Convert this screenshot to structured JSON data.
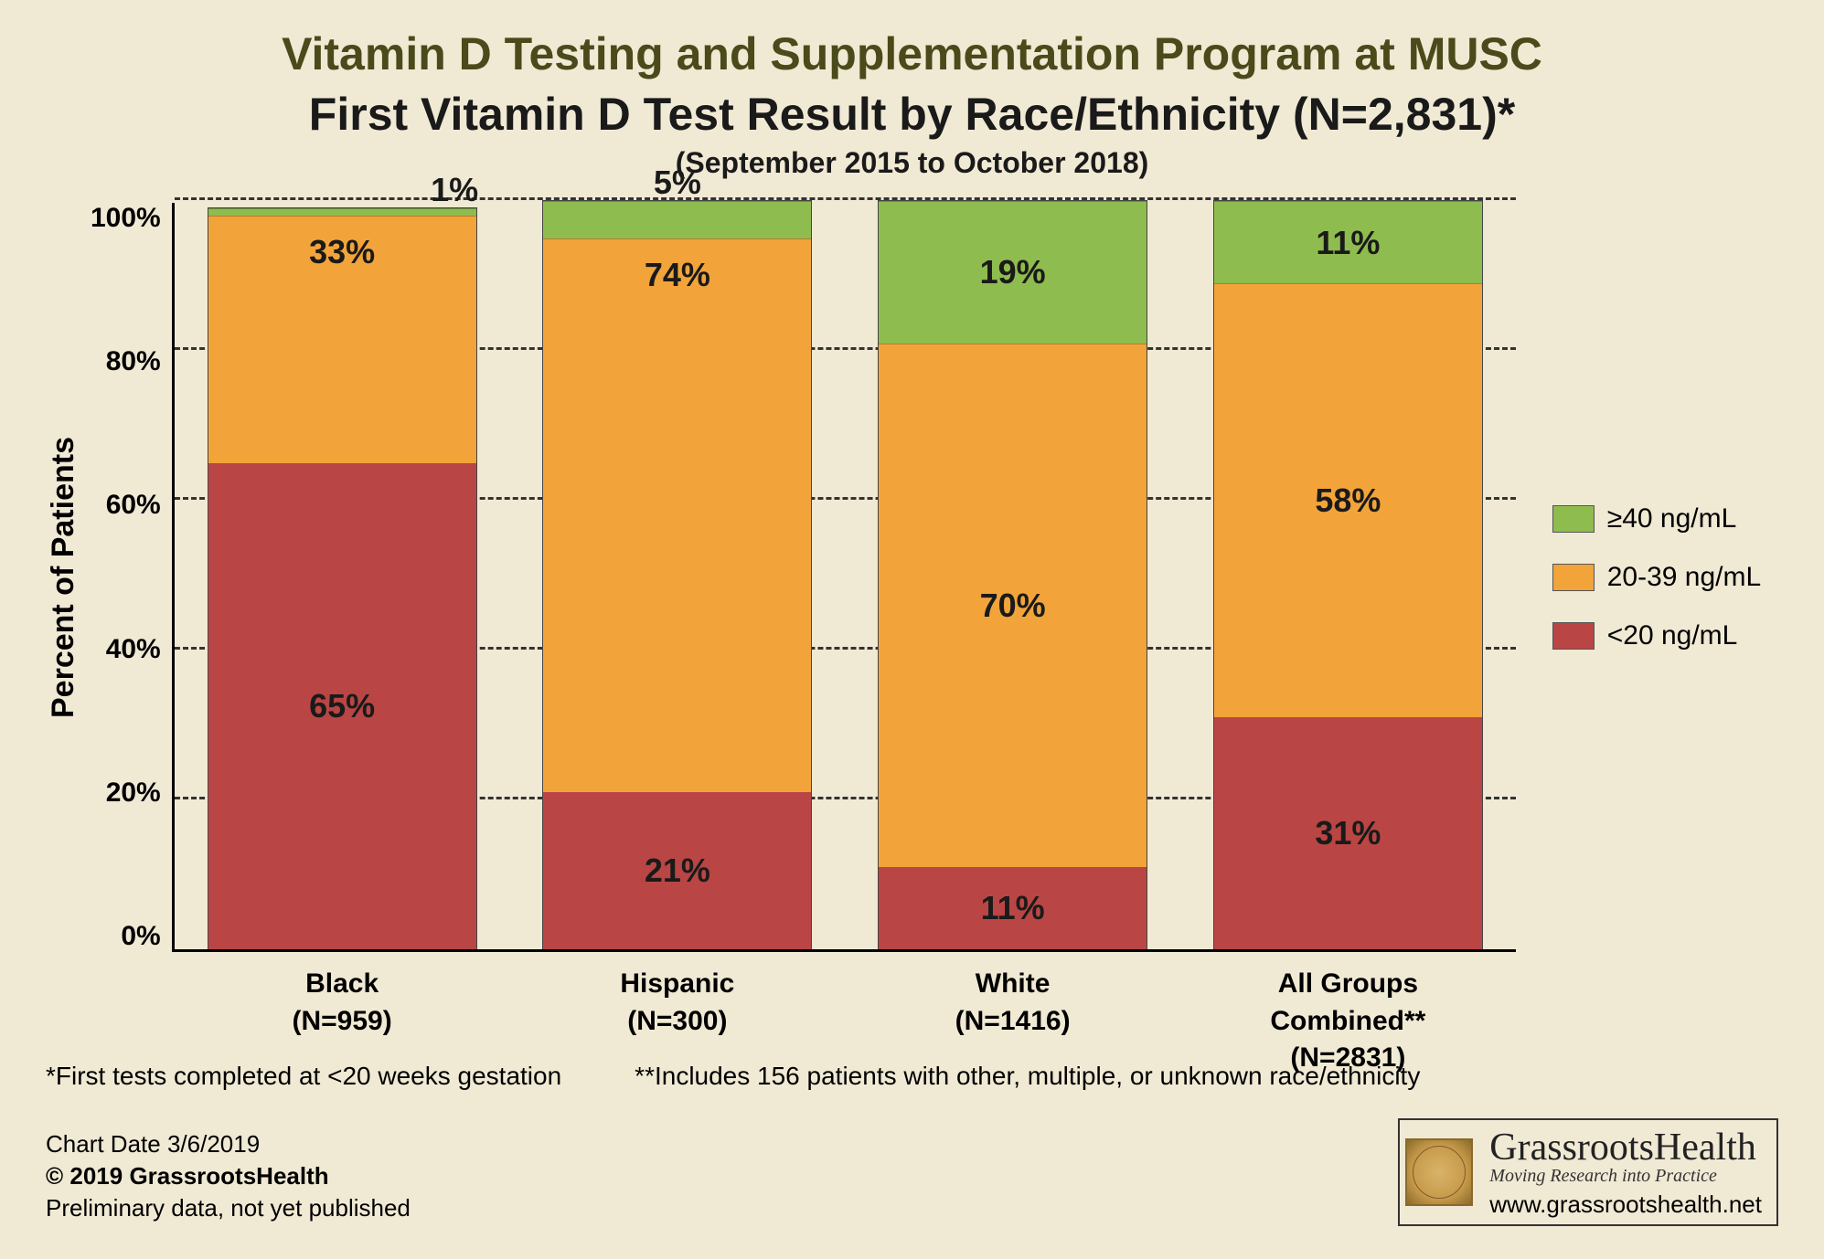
{
  "title": {
    "main": "Vitamin D Testing and Supplementation Program at MUSC",
    "sub": "First Vitamin D Test Result by Race/Ethnicity (N=2,831)*",
    "date_range": "(September 2015 to October 2018)"
  },
  "chart": {
    "type": "stacked_bar_percent",
    "y_axis_title": "Percent of Patients",
    "ylim": [
      0,
      100
    ],
    "ytick_step": 20,
    "yticks": [
      "100%",
      "80%",
      "60%",
      "40%",
      "20%",
      "0%"
    ],
    "background_color": "#f0e9d4",
    "grid_color": "#333333",
    "bar_border_color": "#444444",
    "series": [
      {
        "key": "high",
        "label": "≥40 ng/mL",
        "color": "#8fbc4f"
      },
      {
        "key": "mid",
        "label": "20-39 ng/mL",
        "color": "#f2a43a"
      },
      {
        "key": "low",
        "label": "<20 ng/mL",
        "color": "#b94644"
      }
    ],
    "categories": [
      {
        "name": "Black",
        "n_label": "(N=959)",
        "values": {
          "low": 65,
          "mid": 33,
          "high": 1
        },
        "top_offset": true
      },
      {
        "name": "Hispanic",
        "n_label": "(N=300)",
        "values": {
          "low": 21,
          "mid": 74,
          "high": 5
        },
        "top_offset": false
      },
      {
        "name": "White",
        "n_label": "(N=1416)",
        "values": {
          "low": 11,
          "mid": 70,
          "high": 19
        },
        "top_offset": false
      },
      {
        "name": "All Groups Combined**",
        "n_label": "(N=2831)",
        "values": {
          "low": 31,
          "mid": 58,
          "high": 11
        },
        "top_offset": false
      }
    ]
  },
  "footnotes": {
    "a": "*First tests completed at <20 weeks gestation",
    "b": "**Includes 156 patients with other, multiple, or unknown race/ethnicity"
  },
  "meta": {
    "chart_date": "Chart Date 3/6/2019",
    "copyright": "© 2019 GrassrootsHealth",
    "preliminary": "Preliminary data, not yet published"
  },
  "logo": {
    "name": "GrassrootsHealth",
    "tagline": "Moving Research into Practice",
    "url": "www.grassrootshealth.net"
  },
  "style": {
    "title_color": "#4a4a1a",
    "text_color": "#1a1a1a",
    "title_fontsize": 50,
    "label_fontsize": 30,
    "segment_label_fontsize": 36
  }
}
